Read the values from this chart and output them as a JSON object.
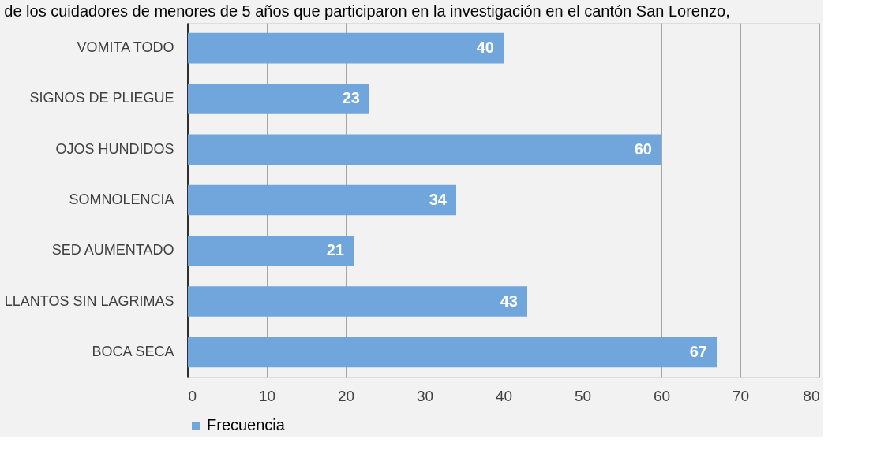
{
  "chart_data": {
    "type": "bar",
    "orientation": "horizontal",
    "title": "de los cuidadores de menores de 5 años que participaron en la investigación en el cantón San Lorenzo,",
    "categories": [
      "VOMITA TODO",
      "SIGNOS DE PLIEGUE",
      "OJOS HUNDIDOS",
      "SOMNOLENCIA",
      "SED AUMENTADO",
      "LLANTOS SIN LAGRIMAS",
      "BOCA SECA"
    ],
    "series": [
      {
        "name": "Frecuencia",
        "color": "#70a6db",
        "values": [
          40,
          23,
          60,
          34,
          21,
          43,
          67
        ]
      }
    ],
    "xlim": [
      0,
      80
    ],
    "xticks": [
      0,
      10,
      20,
      30,
      40,
      50,
      60,
      70,
      80
    ],
    "grid": "x",
    "legend": "bottom",
    "data_labels": true
  }
}
